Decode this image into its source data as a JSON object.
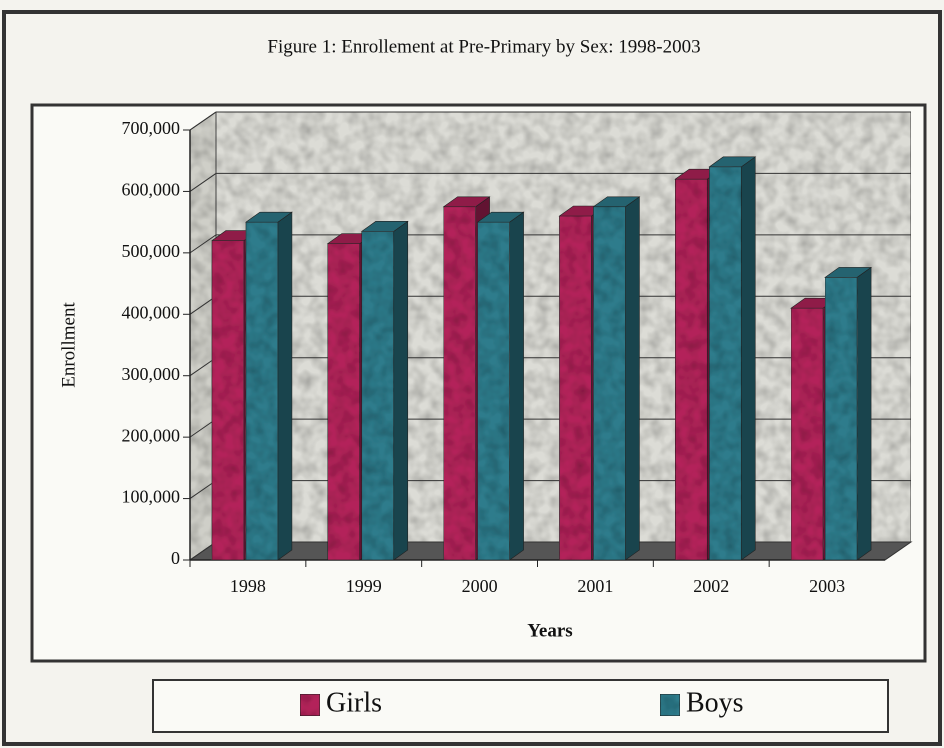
{
  "chart_data": {
    "type": "bar3d",
    "title": "Figure 1: Enrollement at Pre-Primary by Sex: 1998-2003",
    "x_label": "Years",
    "y_label": "Enrollment",
    "categories": [
      "1998",
      "1999",
      "2000",
      "2001",
      "2002",
      "2003"
    ],
    "series": [
      {
        "name": "Girls",
        "color": "#b3235a",
        "values": [
          520000,
          515000,
          575000,
          560000,
          620000,
          410000
        ]
      },
      {
        "name": "Boys",
        "color": "#2e7c8c",
        "values": [
          550000,
          535000,
          550000,
          575000,
          640000,
          460000
        ]
      }
    ],
    "ylim": [
      0,
      700000
    ],
    "yticks": [
      0,
      {
        "value": 100000,
        "label": "100,000"
      },
      {
        "value": 200000,
        "label": "200,000"
      },
      {
        "value": 300000,
        "label": "300,000"
      },
      {
        "value": 400000,
        "label": "400,000"
      },
      {
        "value": 500000,
        "label": "500,000"
      },
      {
        "value": 600000,
        "label": "600,000"
      },
      {
        "value": 700000,
        "label": "700,000"
      }
    ],
    "grid": true
  }
}
